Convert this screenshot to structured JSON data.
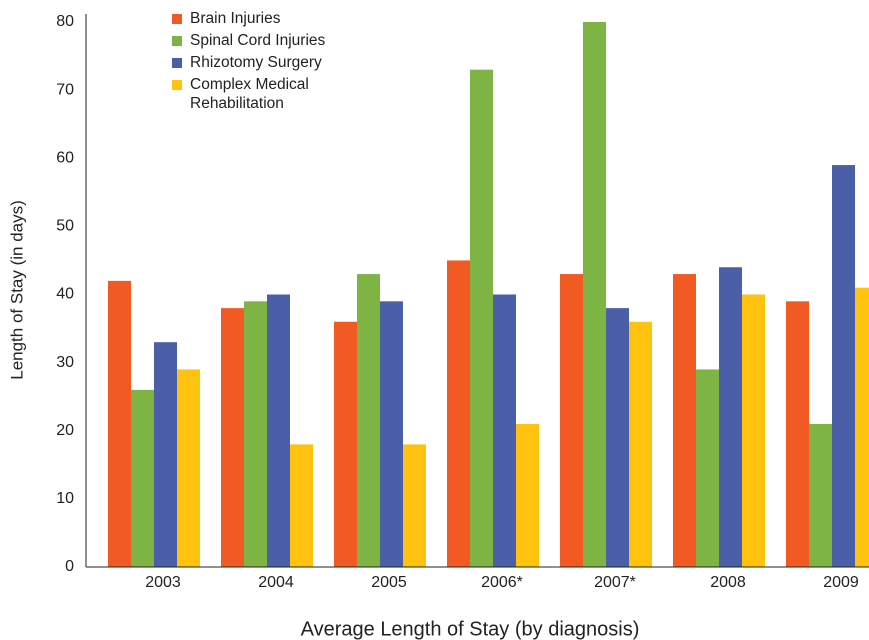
{
  "chart_data": {
    "type": "bar",
    "x_label": "Average Length of Stay (by diagnosis)",
    "y_label": "Length of Stay (in days)",
    "categories": [
      "2003",
      "2004",
      "2005",
      "2006*",
      "2007*",
      "2008",
      "2009"
    ],
    "series": [
      {
        "name": "Brain Injuries",
        "color": "#f15a22",
        "values": [
          42,
          38,
          36,
          45,
          43,
          43,
          39
        ]
      },
      {
        "name": "Spinal Cord Injuries",
        "color": "#7db443",
        "values": [
          26,
          39,
          43,
          73,
          80,
          29,
          21
        ]
      },
      {
        "name": "Rhizotomy Surgery",
        "color": "#4a5fa8",
        "values": [
          33,
          40,
          39,
          40,
          38,
          44,
          59
        ]
      },
      {
        "name": "Complex Medical Rehabilitation",
        "color": "#ffc20e",
        "values": [
          29,
          18,
          18,
          21,
          36,
          40,
          41
        ]
      }
    ],
    "ylim": [
      0,
      80
    ],
    "yticks": [
      0,
      10,
      20,
      30,
      40,
      50,
      60,
      70,
      80
    ],
    "grid": false,
    "legend": "top-left"
  }
}
